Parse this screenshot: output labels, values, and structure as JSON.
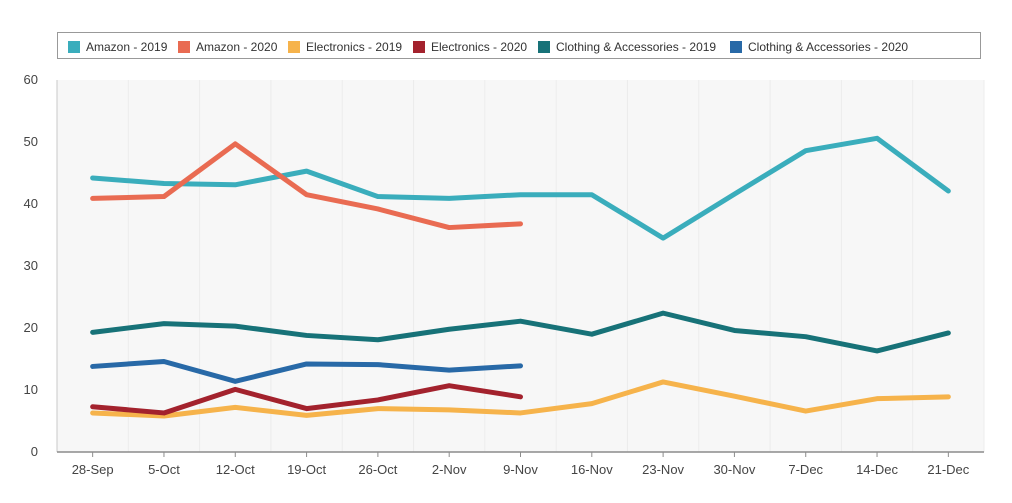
{
  "chart_data": {
    "type": "line",
    "categories": [
      "28-Sep",
      "5-Oct",
      "12-Oct",
      "19-Oct",
      "26-Oct",
      "2-Nov",
      "9-Nov",
      "16-Nov",
      "23-Nov",
      "30-Nov",
      "7-Dec",
      "14-Dec",
      "21-Dec"
    ],
    "ylim": [
      0,
      60
    ],
    "yticks": [
      0,
      10,
      20,
      30,
      40,
      50,
      60
    ],
    "grid": true,
    "legend_position": "top",
    "series": [
      {
        "name": "Amazon - 2019",
        "color": "#3aadbc",
        "values": [
          44.2,
          43.3,
          43.1,
          45.3,
          41.2,
          40.9,
          41.5,
          41.5,
          34.5,
          41.6,
          48.6,
          50.6,
          42.1
        ]
      },
      {
        "name": "Amazon - 2020",
        "color": "#e96b52",
        "values": [
          40.9,
          41.2,
          49.7,
          41.5,
          39.2,
          36.2,
          36.8,
          null,
          null,
          null,
          null,
          null,
          null
        ]
      },
      {
        "name": "Electronics - 2019",
        "color": "#f6b34b",
        "values": [
          6.3,
          5.8,
          7.2,
          5.9,
          7.0,
          6.8,
          6.3,
          7.8,
          11.3,
          9.0,
          6.6,
          8.6,
          8.9
        ]
      },
      {
        "name": "Electronics - 2020",
        "color": "#a3222d",
        "values": [
          7.3,
          6.3,
          10.1,
          7.0,
          8.4,
          10.7,
          8.9,
          null,
          null,
          null,
          null,
          null,
          null
        ]
      },
      {
        "name": "Clothing & Accessories - 2019",
        "color": "#177278",
        "values": [
          19.3,
          20.7,
          20.3,
          18.8,
          18.1,
          19.8,
          21.1,
          19.0,
          22.4,
          19.6,
          18.6,
          16.3,
          19.2
        ]
      },
      {
        "name": "Clothing & Accessories - 2020",
        "color": "#2869a7",
        "values": [
          13.8,
          14.6,
          11.4,
          14.2,
          14.1,
          13.2,
          13.9,
          null,
          null,
          null,
          null,
          null,
          null
        ]
      }
    ]
  }
}
